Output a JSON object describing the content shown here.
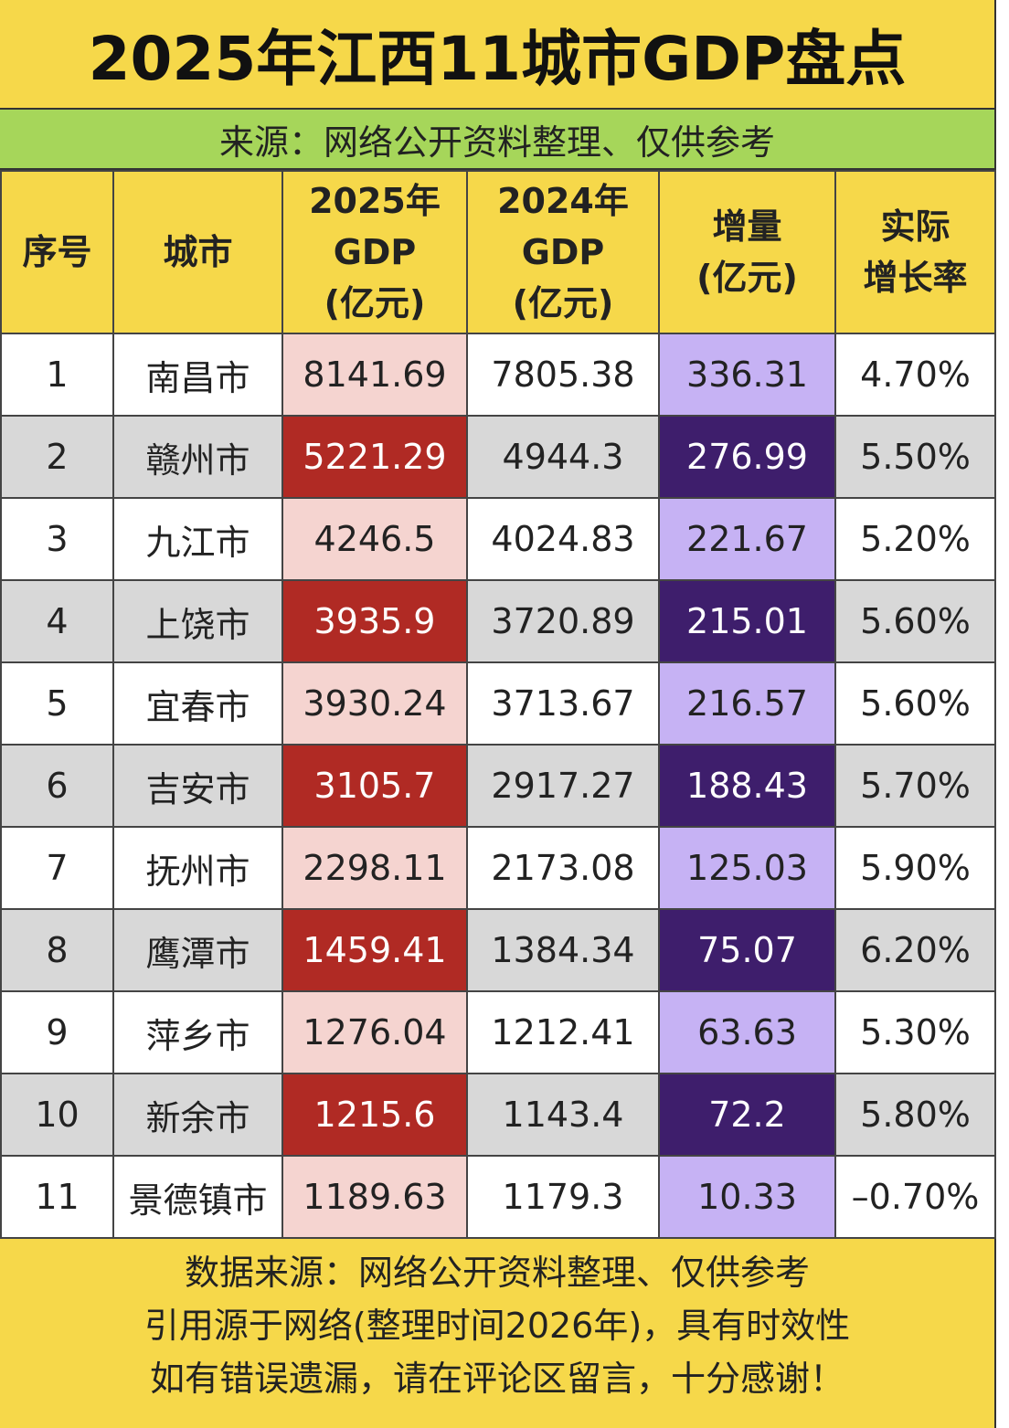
{
  "header": {
    "title": "2025年江西11城市GDP盘点",
    "subtitle": "来源：网络公开资料整理、仅供参考"
  },
  "table": {
    "columns": [
      "序号",
      "城市",
      "2025年\nGDP\n(亿元)",
      "2024年\nGDP\n(亿元)",
      "增量\n(亿元)",
      "实际\n增长率"
    ],
    "rows": [
      [
        "1",
        "南昌市",
        "8141.69",
        "7805.38",
        "336.31",
        "4.70%"
      ],
      [
        "2",
        "赣州市",
        "5221.29",
        "4944.3",
        "276.99",
        "5.50%"
      ],
      [
        "3",
        "九江市",
        "4246.5",
        "4024.83",
        "221.67",
        "5.20%"
      ],
      [
        "4",
        "上饶市",
        "3935.9",
        "3720.89",
        "215.01",
        "5.60%"
      ],
      [
        "5",
        "宜春市",
        "3930.24",
        "3713.67",
        "216.57",
        "5.60%"
      ],
      [
        "6",
        "吉安市",
        "3105.7",
        "2917.27",
        "188.43",
        "5.70%"
      ],
      [
        "7",
        "抚州市",
        "2298.11",
        "2173.08",
        "125.03",
        "5.90%"
      ],
      [
        "8",
        "鹰潭市",
        "1459.41",
        "1384.34",
        "75.07",
        "6.20%"
      ],
      [
        "9",
        "萍乡市",
        "1276.04",
        "1212.41",
        "63.63",
        "5.30%"
      ],
      [
        "10",
        "新余市",
        "1215.6",
        "1143.4",
        "72.2",
        "5.80%"
      ],
      [
        "11",
        "景德镇市",
        "1189.63",
        "1179.3",
        "10.33",
        "–0.70%"
      ]
    ]
  },
  "footer": {
    "lines": [
      "数据来源：网络公开资料整理、仅供参考",
      "引用源于网络(整理时间2026年)，具有时效性",
      "如有错误遗漏，请在评论区留言，十分感谢！"
    ]
  }
}
